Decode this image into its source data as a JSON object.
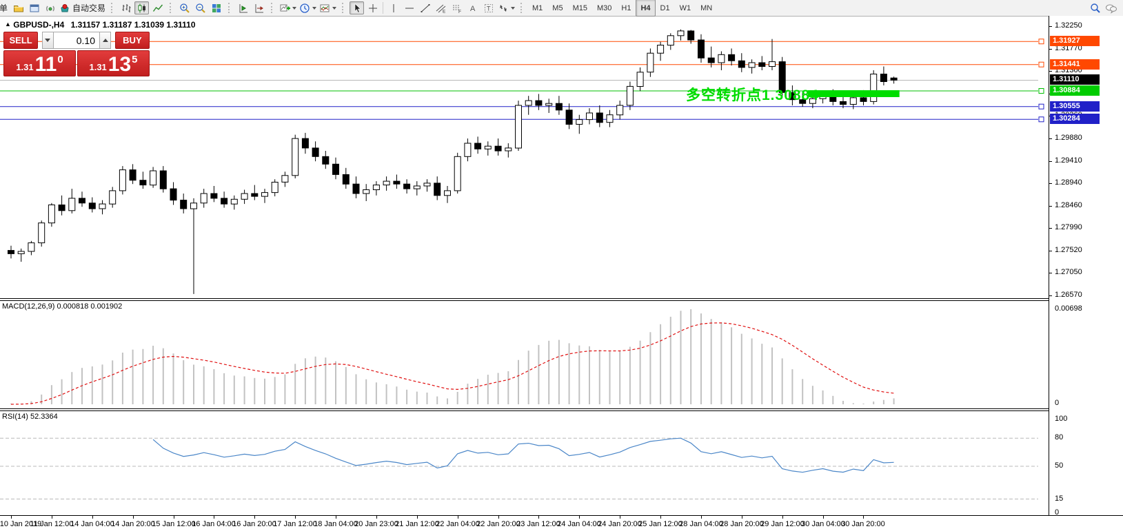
{
  "toolbar": {
    "new_order_label": "单",
    "auto_trading_label": "自动交易",
    "glyphs": {
      "channel": "E",
      "fibo": "F",
      "text_tool": "A",
      "label_tool": "T"
    },
    "timeframes": [
      "M1",
      "M5",
      "M15",
      "M30",
      "H1",
      "H4",
      "D1",
      "W1",
      "MN"
    ],
    "active_timeframe": "H4"
  },
  "chart_header": {
    "collapse_glyph": "▲",
    "symbol_title": "GBPUSD-,H4",
    "ohlc_text": "1.31157 1.31187 1.31039 1.31110"
  },
  "trade_panel": {
    "sell_label": "SELL",
    "buy_label": "BUY",
    "volume": "0.10",
    "sell_price": {
      "prefix": "1.31",
      "big": "11",
      "sup": "0"
    },
    "buy_price": {
      "prefix": "1.31",
      "big": "13",
      "sup": "5"
    }
  },
  "annotation": {
    "text": "多空转折点1.30884",
    "color": "#00dd00"
  },
  "indicators": {
    "macd_label": "MACD(12,26,9) 0.000818 0.001902",
    "rsi_label": "RSI(14) 52.3364"
  },
  "chart_data": {
    "type": "candlestick",
    "symbol": "GBPUSD-",
    "timeframe": "H4",
    "grid": false,
    "price_axis": {
      "ticks": [
        "1.32250",
        "1.31770",
        "1.31300",
        "1.30830",
        "1.30360",
        "1.29880",
        "1.29410",
        "1.28940",
        "1.28460",
        "1.27990",
        "1.27520",
        "1.27050",
        "1.26570"
      ]
    },
    "levels": [
      {
        "label": "1.31927",
        "price": 1.31927,
        "line": "#ff4800",
        "badge": "#ff4800",
        "role": "resistance"
      },
      {
        "label": "1.31441",
        "price": 1.31441,
        "line": "#ff4800",
        "badge": "#ff4800",
        "role": "resistance"
      },
      {
        "label": "1.31110",
        "price": 1.3111,
        "line": "#b8b8b8",
        "badge": "#000000",
        "role": "last-price"
      },
      {
        "label": "1.30884",
        "price": 1.30884,
        "line": "#00c000",
        "badge": "#00cc00",
        "role": "pivot"
      },
      {
        "label": "1.30555",
        "price": 1.30555,
        "line": "#2020c8",
        "badge": "#2020c8",
        "role": "support"
      },
      {
        "label": "1.30284",
        "price": 1.30284,
        "line": "#2020c8",
        "badge": "#2020c8",
        "role": "support"
      }
    ],
    "highlight_bar": {
      "price": 1.30884,
      "from_candle": 79,
      "to_candle": 87,
      "color": "#00dd00"
    },
    "time_labels": [
      "10 Jan 2019",
      "11 Jan 12:00",
      "14 Jan 04:00",
      "14 Jan 20:00",
      "15 Jan 12:00",
      "16 Jan 04:00",
      "16 Jan 20:00",
      "17 Jan 12:00",
      "18 Jan 04:00",
      "20 Jan 23:00",
      "21 Jan 12:00",
      "22 Jan 04:00",
      "22 Jan 20:00",
      "23 Jan 12:00",
      "24 Jan 04:00",
      "24 Jan 20:00",
      "25 Jan 12:00",
      "28 Jan 04:00",
      "28 Jan 20:00",
      "29 Jan 12:00",
      "30 Jan 04:00",
      "30 Jan 20:00"
    ],
    "label_every": 4,
    "candles": [
      [
        1.2752,
        1.2762,
        1.2735,
        1.2745
      ],
      [
        1.2745,
        1.2756,
        1.2728,
        1.275
      ],
      [
        1.275,
        1.2772,
        1.2742,
        1.2768
      ],
      [
        1.2768,
        1.2815,
        1.276,
        1.281
      ],
      [
        1.281,
        1.2852,
        1.2802,
        1.2848
      ],
      [
        1.2848,
        1.2868,
        1.2826,
        1.2836
      ],
      [
        1.2836,
        1.2882,
        1.283,
        1.2862
      ],
      [
        1.2862,
        1.2876,
        1.2844,
        1.2852
      ],
      [
        1.2852,
        1.2864,
        1.2832,
        1.284
      ],
      [
        1.284,
        1.2858,
        1.2828,
        1.285
      ],
      [
        1.285,
        1.2886,
        1.2842,
        1.2878
      ],
      [
        1.2878,
        1.293,
        1.287,
        1.2922
      ],
      [
        1.2922,
        1.2934,
        1.2892,
        1.29
      ],
      [
        1.29,
        1.2918,
        1.2882,
        1.289
      ],
      [
        1.289,
        1.2928,
        1.2884,
        1.292
      ],
      [
        1.292,
        1.293,
        1.2874,
        1.2882
      ],
      [
        1.2882,
        1.2896,
        1.2848,
        1.2858
      ],
      [
        1.2858,
        1.2872,
        1.283,
        1.284
      ],
      [
        1.284,
        1.2862,
        1.266,
        1.2852
      ],
      [
        1.2852,
        1.2882,
        1.2842,
        1.2872
      ],
      [
        1.2872,
        1.2888,
        1.2854,
        1.2862
      ],
      [
        1.2862,
        1.2876,
        1.2842,
        1.285
      ],
      [
        1.285,
        1.2868,
        1.2838,
        1.286
      ],
      [
        1.286,
        1.288,
        1.285,
        1.2872
      ],
      [
        1.2872,
        1.289,
        1.2858,
        1.2866
      ],
      [
        1.2866,
        1.2882,
        1.2852,
        1.2874
      ],
      [
        1.2874,
        1.2902,
        1.2866,
        1.2896
      ],
      [
        1.2896,
        1.2918,
        1.2886,
        1.291
      ],
      [
        1.291,
        1.2996,
        1.2904,
        1.2988
      ],
      [
        1.2988,
        1.3,
        1.2956,
        1.2968
      ],
      [
        1.2968,
        1.2982,
        1.294,
        1.295
      ],
      [
        1.295,
        1.2962,
        1.2924,
        1.2934
      ],
      [
        1.2934,
        1.2948,
        1.2902,
        1.2912
      ],
      [
        1.2912,
        1.2926,
        1.2882,
        1.2892
      ],
      [
        1.2892,
        1.2908,
        1.2862,
        1.2872
      ],
      [
        1.2872,
        1.2892,
        1.2856,
        1.288
      ],
      [
        1.288,
        1.2898,
        1.2868,
        1.289
      ],
      [
        1.289,
        1.2908,
        1.2878,
        1.2898
      ],
      [
        1.2898,
        1.2912,
        1.2882,
        1.2892
      ],
      [
        1.2892,
        1.2902,
        1.2872,
        1.2882
      ],
      [
        1.2882,
        1.2898,
        1.2868,
        1.2888
      ],
      [
        1.2888,
        1.2902,
        1.2876,
        1.2894
      ],
      [
        1.2894,
        1.2908,
        1.2858,
        1.2868
      ],
      [
        1.2868,
        1.2888,
        1.2852,
        1.2878
      ],
      [
        1.2878,
        1.2958,
        1.2872,
        1.295
      ],
      [
        1.295,
        1.2988,
        1.294,
        1.2978
      ],
      [
        1.2978,
        1.2992,
        1.2956,
        1.2966
      ],
      [
        1.2966,
        1.2982,
        1.2952,
        1.2972
      ],
      [
        1.2972,
        1.2988,
        1.2952,
        1.2962
      ],
      [
        1.2962,
        1.2978,
        1.2948,
        1.2968
      ],
      [
        1.2968,
        1.3068,
        1.2962,
        1.3058
      ],
      [
        1.3058,
        1.3078,
        1.3038,
        1.3068
      ],
      [
        1.3068,
        1.3082,
        1.3048,
        1.3058
      ],
      [
        1.3058,
        1.3072,
        1.3042,
        1.3062
      ],
      [
        1.3062,
        1.3078,
        1.3038,
        1.3048
      ],
      [
        1.3048,
        1.3062,
        1.3008,
        1.3018
      ],
      [
        1.3018,
        1.3038,
        1.2998,
        1.3028
      ],
      [
        1.3028,
        1.3052,
        1.3018,
        1.3042
      ],
      [
        1.3042,
        1.3058,
        1.3012,
        1.3022
      ],
      [
        1.3022,
        1.3048,
        1.3012,
        1.3038
      ],
      [
        1.3038,
        1.3068,
        1.3028,
        1.3058
      ],
      [
        1.3058,
        1.3108,
        1.3048,
        1.3098
      ],
      [
        1.3098,
        1.3138,
        1.3088,
        1.3128
      ],
      [
        1.3128,
        1.3178,
        1.3118,
        1.3168
      ],
      [
        1.3168,
        1.3192,
        1.3152,
        1.3185
      ],
      [
        1.3185,
        1.321,
        1.3175,
        1.3205
      ],
      [
        1.3205,
        1.3218,
        1.3195,
        1.3215
      ],
      [
        1.3215,
        1.3217,
        1.3188,
        1.3196
      ],
      [
        1.3196,
        1.3208,
        1.3148,
        1.3158
      ],
      [
        1.3158,
        1.3182,
        1.3138,
        1.3148
      ],
      [
        1.3148,
        1.3172,
        1.3132,
        1.3165
      ],
      [
        1.3165,
        1.3178,
        1.3142,
        1.3152
      ],
      [
        1.3152,
        1.3168,
        1.3128,
        1.3138
      ],
      [
        1.3138,
        1.3155,
        1.3125,
        1.3148
      ],
      [
        1.3148,
        1.3162,
        1.3132,
        1.314
      ],
      [
        1.314,
        1.3198,
        1.3132,
        1.315
      ],
      [
        1.315,
        1.316,
        1.3075,
        1.3085
      ],
      [
        1.3085,
        1.31,
        1.3058,
        1.307
      ],
      [
        1.307,
        1.3085,
        1.3055,
        1.3062
      ],
      [
        1.3062,
        1.3078,
        1.3052,
        1.3072
      ],
      [
        1.3072,
        1.3088,
        1.3062,
        1.308
      ],
      [
        1.308,
        1.3092,
        1.3058,
        1.3066
      ],
      [
        1.3066,
        1.308,
        1.3052,
        1.306
      ],
      [
        1.306,
        1.3082,
        1.305,
        1.3074
      ],
      [
        1.3074,
        1.309,
        1.3058,
        1.3066
      ],
      [
        1.3066,
        1.3132,
        1.306,
        1.3124
      ],
      [
        1.3124,
        1.314,
        1.31,
        1.3108
      ],
      [
        1.31157,
        1.31187,
        1.31039,
        1.3111
      ]
    ],
    "macd": {
      "params": "12,26,9",
      "value": "0.000818",
      "signal_value": "0.001902",
      "axis_labels": [
        "0.00698",
        "0"
      ],
      "histogram_color": "#c2c2c2",
      "signal_color": "#e01010"
    },
    "rsi": {
      "period": 14,
      "value": "52.3364",
      "levels": [
        80,
        50,
        15
      ],
      "axis_labels": [
        "100",
        "80",
        "50",
        "15",
        "0"
      ],
      "line_color": "#4a86c8"
    }
  }
}
